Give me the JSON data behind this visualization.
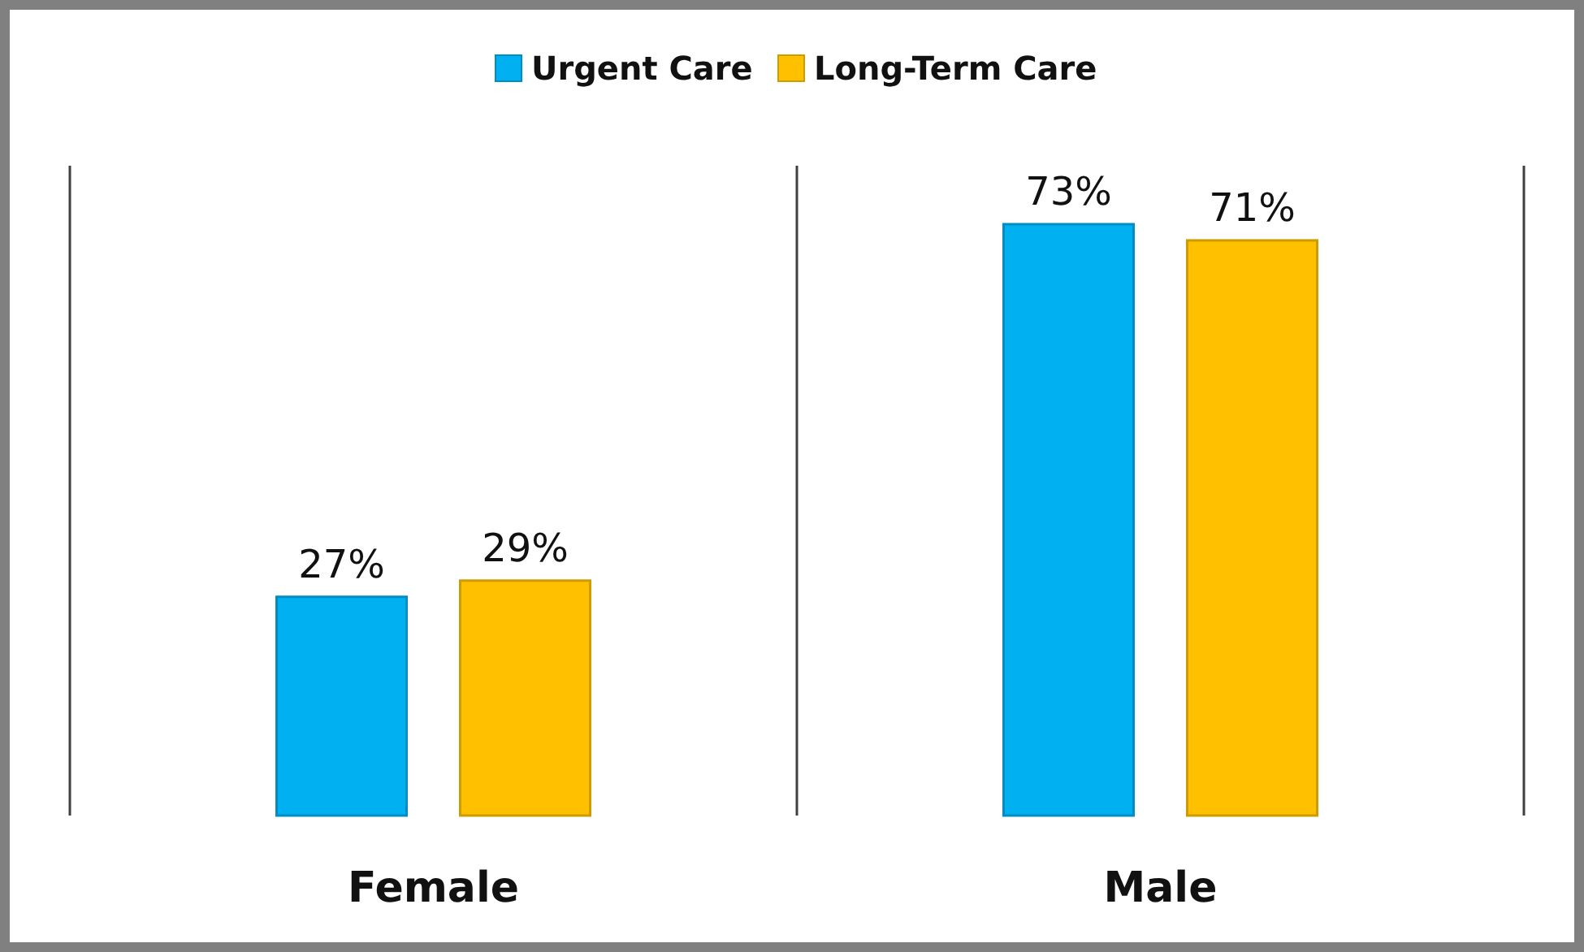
{
  "chart_data": {
    "type": "bar",
    "categories": [
      "Female",
      "Male"
    ],
    "series": [
      {
        "name": "Urgent Care",
        "color": "#00b0f0",
        "values": [
          27,
          73
        ],
        "value_labels": [
          "27%",
          "73%"
        ]
      },
      {
        "name": "Long-Term Care",
        "color": "#ffc000",
        "values": [
          29,
          71
        ],
        "value_labels": [
          "29%",
          "71%"
        ]
      }
    ],
    "legend": "top"
  }
}
